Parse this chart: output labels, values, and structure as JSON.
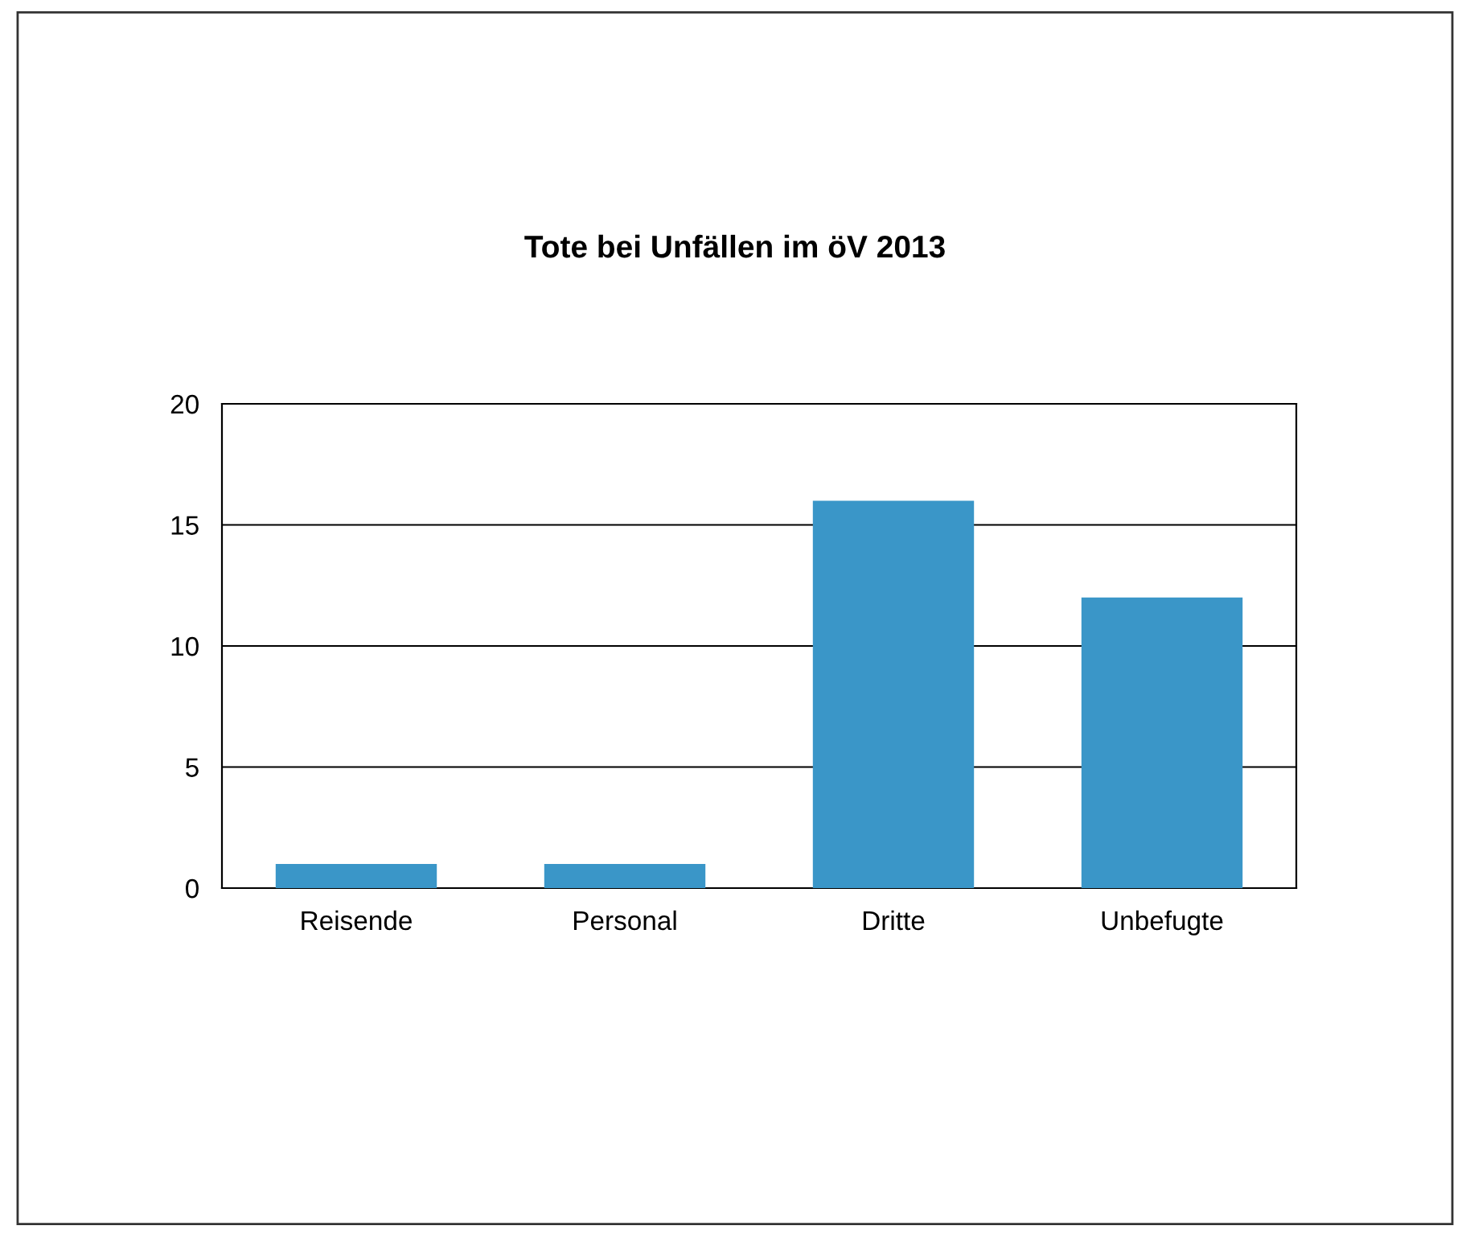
{
  "chart_data": {
    "type": "bar",
    "title": "Tote bei Unfällen im öV 2013",
    "categories": [
      "Reisende",
      "Personal",
      "Dritte",
      "Unbefugte"
    ],
    "values": [
      1,
      1,
      16,
      12
    ],
    "color": "#3a96c8",
    "ylim": [
      0,
      20
    ],
    "yticks": [
      0,
      5,
      10,
      15,
      20
    ],
    "grid": "y",
    "legend": false
  }
}
